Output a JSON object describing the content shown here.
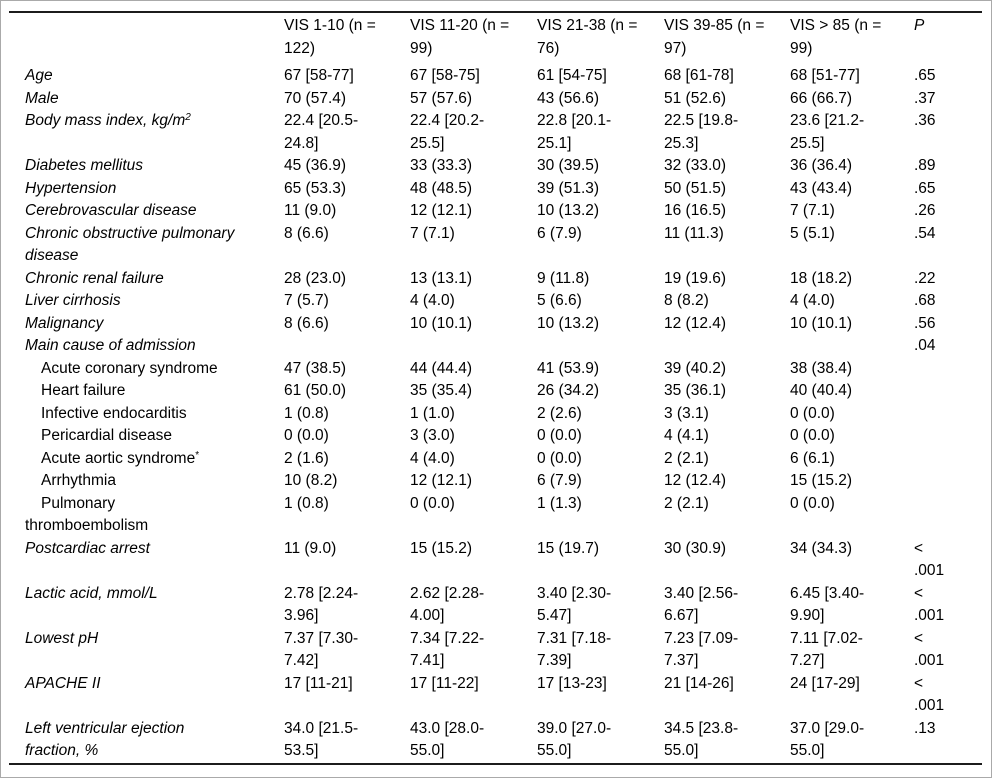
{
  "colors": {
    "background": "#ffffff",
    "text": "#000000",
    "rule": "#1c1c1c",
    "frame": "#aaaaaa"
  },
  "table": {
    "columns": [
      "VIS 1-10 (n =\n122)",
      "VIS 11-20 (n =\n99)",
      "VIS 21-38 (n =\n76)",
      "VIS 39-85 (n =\n97)",
      "VIS > 85 (n =\n99)",
      "P"
    ],
    "rows": [
      {
        "label": "Age",
        "style": "main",
        "values": [
          "67 [58-77]",
          "67 [58-75]",
          "61 [54-75]",
          "68 [61-78]",
          "68 [51-77]",
          ".65"
        ]
      },
      {
        "label": "Male",
        "style": "main",
        "values": [
          "70 (57.4)",
          "57 (57.6)",
          "43 (56.6)",
          "51 (52.6)",
          "66 (66.7)",
          ".37"
        ]
      },
      {
        "label": "Body mass index, kg/m",
        "sup": "2",
        "style": "main",
        "values": [
          "22.4 [20.5-\n24.8]",
          "22.4 [20.2-\n25.5]",
          "22.8 [20.1-\n25.1]",
          "22.5 [19.8-\n25.3]",
          "23.6 [21.2-\n25.5]",
          ".36"
        ]
      },
      {
        "label": "Diabetes mellitus",
        "style": "main",
        "values": [
          "45 (36.9)",
          "33 (33.3)",
          "30 (39.5)",
          "32 (33.0)",
          "36 (36.4)",
          ".89"
        ]
      },
      {
        "label": "Hypertension",
        "style": "main",
        "values": [
          "65 (53.3)",
          "48 (48.5)",
          "39 (51.3)",
          "50 (51.5)",
          "43 (43.4)",
          ".65"
        ]
      },
      {
        "label": "Cerebrovascular disease",
        "style": "main",
        "values": [
          "11 (9.0)",
          "12 (12.1)",
          "10 (13.2)",
          "16 (16.5)",
          "7 (7.1)",
          ".26"
        ]
      },
      {
        "label": "Chronic obstructive pulmonary\ndisease",
        "style": "main",
        "values": [
          "8 (6.6)",
          "7 (7.1)",
          "6 (7.9)",
          "11 (11.3)",
          "5 (5.1)",
          ".54"
        ]
      },
      {
        "label": "Chronic renal failure",
        "style": "main",
        "values": [
          "28 (23.0)",
          "13 (13.1)",
          "9 (11.8)",
          "19 (19.6)",
          "18 (18.2)",
          ".22"
        ]
      },
      {
        "label": "Liver cirrhosis",
        "style": "main",
        "values": [
          "7 (5.7)",
          "4 (4.0)",
          "5 (6.6)",
          "8 (8.2)",
          "4 (4.0)",
          ".68"
        ]
      },
      {
        "label": "Malignancy",
        "style": "main",
        "values": [
          "8 (6.6)",
          "10 (10.1)",
          "10 (13.2)",
          "12 (12.4)",
          "10 (10.1)",
          ".56"
        ]
      },
      {
        "label": "Main cause of admission",
        "style": "main",
        "values": [
          "",
          "",
          "",
          "",
          "",
          ".04"
        ]
      },
      {
        "label": "Acute coronary syndrome",
        "style": "sub",
        "values": [
          "47 (38.5)",
          "44 (44.4)",
          "41 (53.9)",
          "39 (40.2)",
          "38 (38.4)",
          ""
        ]
      },
      {
        "label": "Heart failure",
        "style": "sub",
        "values": [
          "61 (50.0)",
          "35 (35.4)",
          "26 (34.2)",
          "35 (36.1)",
          "40 (40.4)",
          ""
        ]
      },
      {
        "label": "Infective endocarditis",
        "style": "sub",
        "values": [
          "1 (0.8)",
          "1 (1.0)",
          "2 (2.6)",
          "3 (3.1)",
          "0 (0.0)",
          ""
        ]
      },
      {
        "label": "Pericardial disease",
        "style": "sub",
        "values": [
          "0 (0.0)",
          "3 (3.0)",
          "0 (0.0)",
          "4 (4.1)",
          "0 (0.0)",
          ""
        ]
      },
      {
        "label": "Acute aortic syndrome",
        "sup": "*",
        "style": "sub",
        "values": [
          "2 (1.6)",
          "4 (4.0)",
          "0 (0.0)",
          "2 (2.1)",
          "6 (6.1)",
          ""
        ]
      },
      {
        "label": "Arrhythmia",
        "style": "sub",
        "values": [
          "10 (8.2)",
          "12 (12.1)",
          "6 (7.9)",
          "12 (12.4)",
          "15 (15.2)",
          ""
        ]
      },
      {
        "label": "Pulmonary\nthromboembolism",
        "style": "sub",
        "values": [
          "1 (0.8)",
          "0 (0.0)",
          "1 (1.3)",
          "2 (2.1)",
          "0 (0.0)",
          ""
        ]
      },
      {
        "label": "Postcardiac arrest",
        "style": "main",
        "values": [
          "11 (9.0)",
          "15 (15.2)",
          "15 (19.7)",
          "30 (30.9)",
          "34 (34.3)",
          "<\n.001"
        ]
      },
      {
        "label": "Lactic acid, mmol/L",
        "style": "main",
        "values": [
          "2.78 [2.24-\n3.96]",
          "2.62 [2.28-\n4.00]",
          "3.40 [2.30-\n5.47]",
          "3.40 [2.56-\n6.67]",
          "6.45 [3.40-\n9.90]",
          "<\n.001"
        ]
      },
      {
        "label": "Lowest pH",
        "style": "main",
        "values": [
          "7.37 [7.30-\n7.42]",
          "7.34 [7.22-\n7.41]",
          "7.31 [7.18-\n7.39]",
          "7.23 [7.09-\n7.37]",
          "7.11 [7.02-\n7.27]",
          "<\n.001"
        ]
      },
      {
        "label": "APACHE II",
        "style": "main",
        "values": [
          "17 [11-21]",
          "17 [11-22]",
          "17 [13-23]",
          "21 [14-26]",
          "24 [17-29]",
          "<\n.001"
        ]
      },
      {
        "label": "Left ventricular ejection\nfraction, %",
        "style": "main",
        "values": [
          "34.0 [21.5-\n53.5]",
          "43.0 [28.0-\n55.0]",
          "39.0 [27.0-\n55.0]",
          "34.5 [23.8-\n55.0]",
          "37.0 [29.0-\n55.0]",
          ".13"
        ]
      }
    ]
  }
}
